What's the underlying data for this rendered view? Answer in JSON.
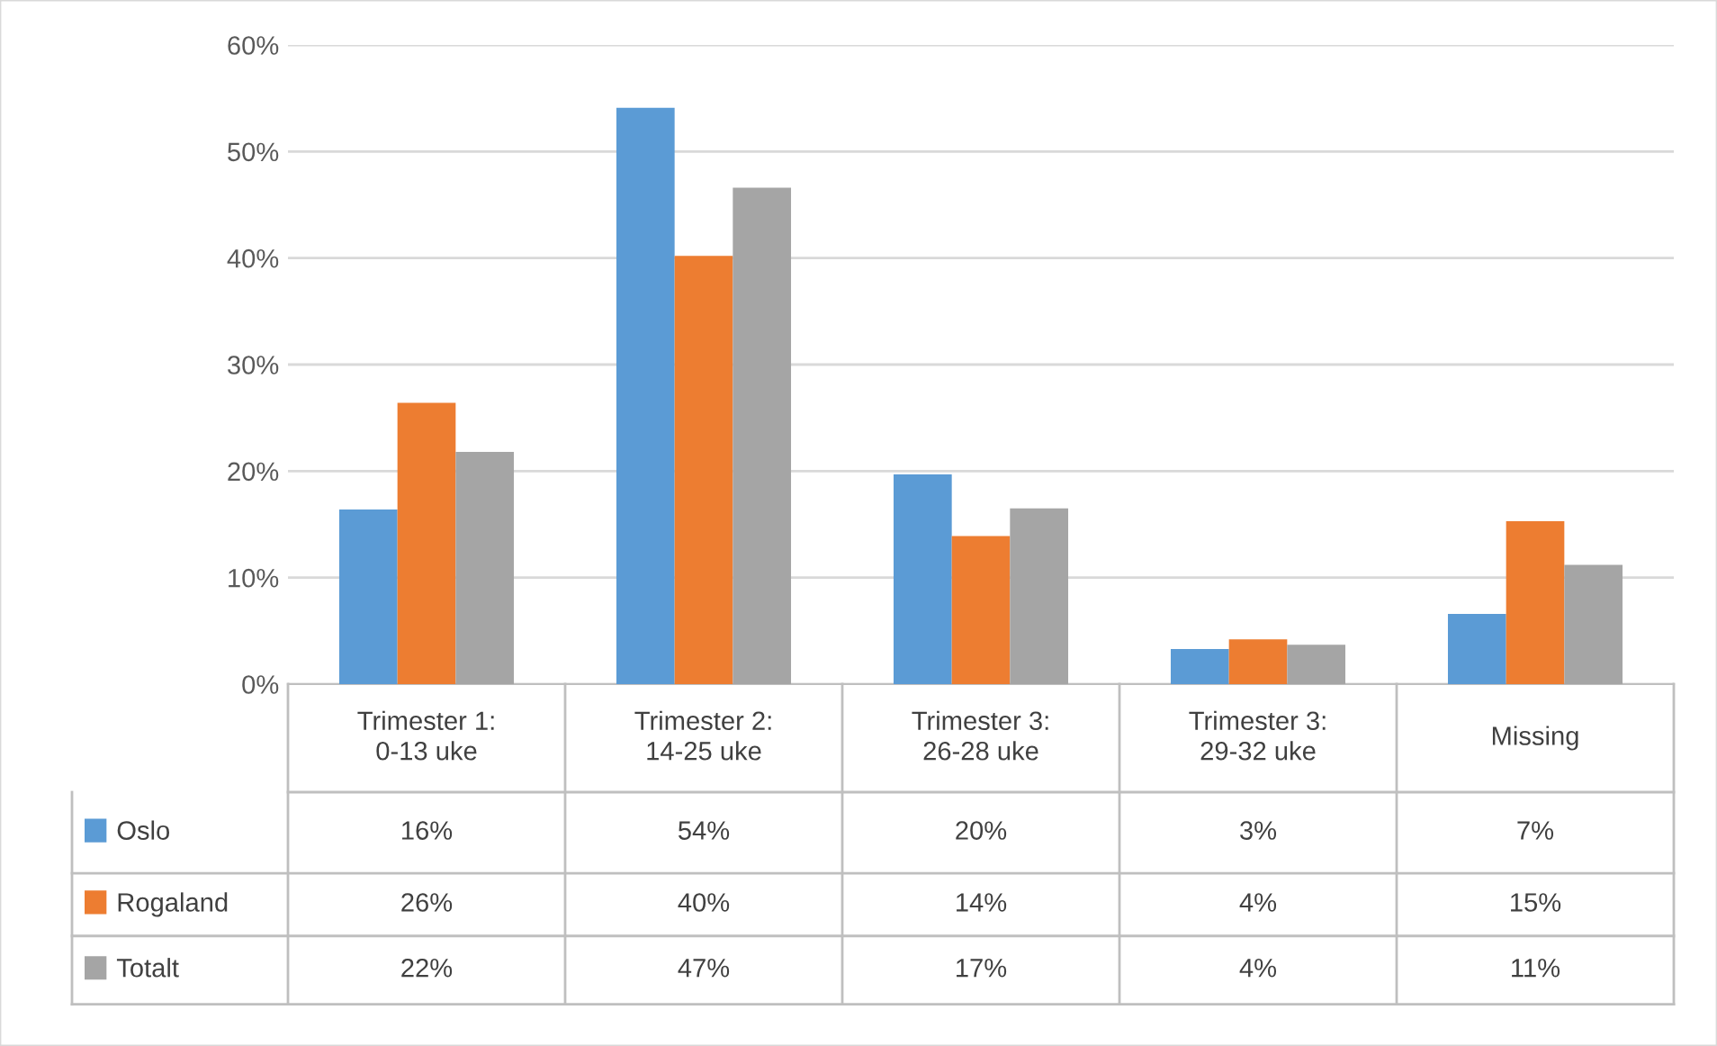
{
  "chart_data": {
    "type": "bar",
    "categories": [
      "Trimester 1:\n0-13 uke",
      "Trimester 2:\n14-25 uke",
      "Trimester 3:\n26-28 uke",
      "Trimester 3:\n29-32 uke",
      "Missing"
    ],
    "series": [
      {
        "name": "Oslo",
        "color": "#5b9bd5",
        "values": [
          16.4,
          54.1,
          19.7,
          3.3,
          6.6
        ],
        "value_labels": [
          "16%",
          "54%",
          "20%",
          "3%",
          "7%"
        ]
      },
      {
        "name": "Rogaland",
        "color": "#ed7d31",
        "values": [
          26.4,
          40.2,
          13.9,
          4.2,
          15.3
        ],
        "value_labels": [
          "26%",
          "40%",
          "14%",
          "4%",
          "15%"
        ]
      },
      {
        "name": "Totalt",
        "color": "#a5a5a5",
        "values": [
          21.8,
          46.6,
          16.5,
          3.7,
          11.2
        ],
        "value_labels": [
          "22%",
          "47%",
          "17%",
          "4%",
          "11%"
        ]
      }
    ],
    "ylim": [
      0,
      60
    ],
    "yticks": [
      {
        "value": 0,
        "label": "0%"
      },
      {
        "value": 10,
        "label": "10%"
      },
      {
        "value": 20,
        "label": "20%"
      },
      {
        "value": 30,
        "label": "30%"
      },
      {
        "value": 40,
        "label": "40%"
      },
      {
        "value": 50,
        "label": "50%"
      },
      {
        "value": 60,
        "label": "60%"
      }
    ],
    "grid": "y",
    "legend": "bottom"
  }
}
